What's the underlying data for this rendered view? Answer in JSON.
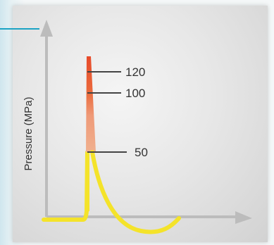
{
  "chart_data": {
    "type": "line",
    "title": "",
    "xlabel": "",
    "ylabel": "Pressure (MPa)",
    "grid": false,
    "legend": "none",
    "ylim": [
      0,
      120
    ],
    "markers": [
      {
        "label": "120",
        "value": 120
      },
      {
        "label": "100",
        "value": 100
      },
      {
        "label": "50",
        "value": 50
      }
    ],
    "colors": {
      "low_pressure": "#f4e32a",
      "mid_pressure": "#ef9a78",
      "high_pressure": "#e74a2a",
      "axis": "#bdbdbd",
      "accent": "#1ba3c4"
    }
  }
}
